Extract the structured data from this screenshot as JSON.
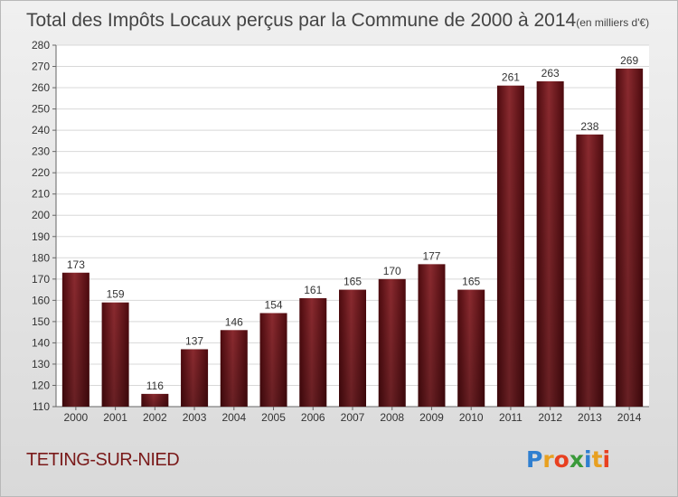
{
  "chart_data": {
    "type": "bar",
    "title": "Total des Impôts Locaux perçus par la Commune de 2000 à 2014",
    "subtitle": "(en milliers d'€)",
    "categories": [
      "2000",
      "2001",
      "2002",
      "2003",
      "2004",
      "2005",
      "2006",
      "2007",
      "2008",
      "2009",
      "2010",
      "2011",
      "2012",
      "2013",
      "2014"
    ],
    "values": [
      173,
      159,
      116,
      137,
      146,
      154,
      161,
      165,
      170,
      177,
      165,
      261,
      263,
      238,
      269
    ],
    "ylim": [
      110,
      280
    ],
    "yticks": [
      110,
      120,
      130,
      140,
      150,
      160,
      170,
      180,
      190,
      200,
      210,
      220,
      230,
      240,
      250,
      260,
      270,
      280
    ],
    "grid": true,
    "bar_color": "#6e1418"
  },
  "footer": {
    "commune": "TETING-SUR-NIED",
    "brand": "Proxiti"
  },
  "colors": {
    "commune_text": "#7a1a1a",
    "brand_p": "#2f7fd0",
    "brand_r": "#e8a020",
    "brand_o": "#e84020",
    "brand_x": "#3a9a3a",
    "brand_i": "#2f7fd0",
    "brand_t": "#e8a020",
    "brand_i2": "#e84020"
  }
}
